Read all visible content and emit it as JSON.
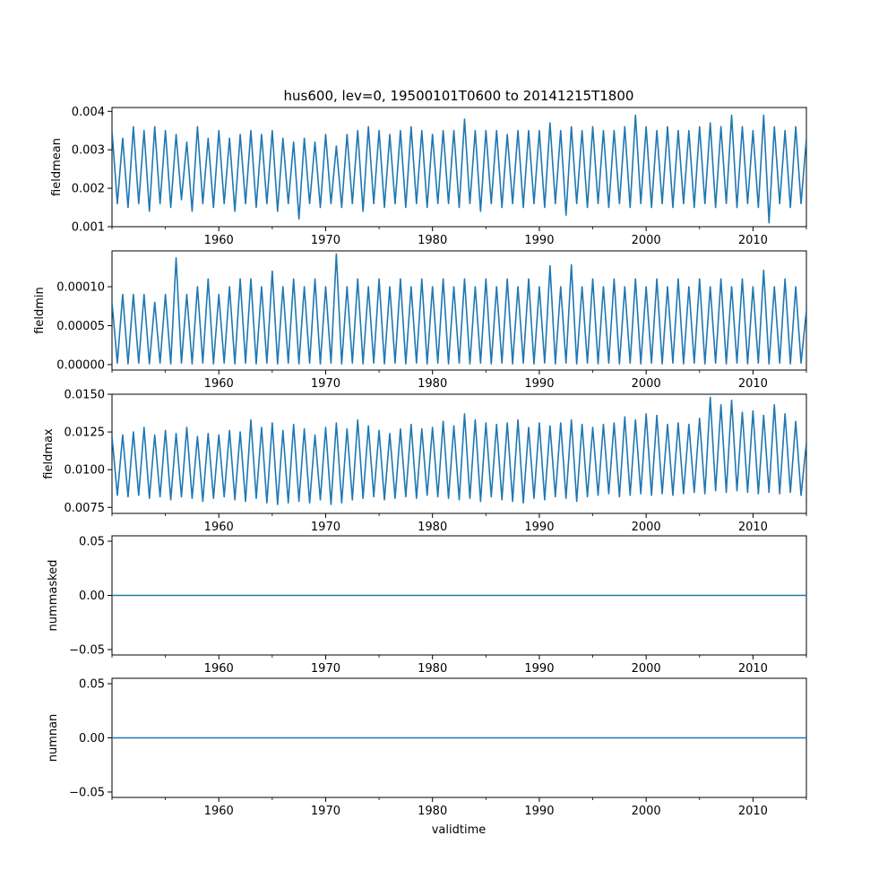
{
  "figure": {
    "title": "hus600, lev=0, 19500101T0600 to 20141215T1800",
    "xlabel": "validtime",
    "line_color": "#1f77b4"
  },
  "chart_data": [
    {
      "type": "line",
      "ylabel": "fieldmean",
      "xlim": [
        1950.0,
        2015.0
      ],
      "ylim": [
        0.001,
        0.0041
      ],
      "yticks": [
        0.001,
        0.002,
        0.003,
        0.004
      ],
      "ytick_labels": [
        "0.001",
        "0.002",
        "0.003",
        "0.004"
      ],
      "xticks": [
        1960,
        1970,
        1980,
        1990,
        2000,
        2010
      ],
      "xtick_labels": [
        "1960",
        "1970",
        "1980",
        "1990",
        "2000",
        "2010"
      ],
      "series": [
        {
          "name": "fieldmean",
          "x": [
            1950.0,
            1950.5,
            1951.0,
            1951.5,
            1952.0,
            1952.5,
            1953.0,
            1953.5,
            1954.0,
            1954.5,
            1955.0,
            1955.5,
            1956.0,
            1956.5,
            1957.0,
            1957.5,
            1958.0,
            1958.5,
            1959.0,
            1959.5,
            1960.0,
            1960.5,
            1961.0,
            1961.5,
            1962.0,
            1962.5,
            1963.0,
            1963.5,
            1964.0,
            1964.5,
            1965.0,
            1965.5,
            1966.0,
            1966.5,
            1967.0,
            1967.5,
            1968.0,
            1968.5,
            1969.0,
            1969.5,
            1970.0,
            1970.5,
            1971.0,
            1971.5,
            1972.0,
            1972.5,
            1973.0,
            1973.5,
            1974.0,
            1974.5,
            1975.0,
            1975.5,
            1976.0,
            1976.5,
            1977.0,
            1977.5,
            1978.0,
            1978.5,
            1979.0,
            1979.5,
            1980.0,
            1980.5,
            1981.0,
            1981.5,
            1982.0,
            1982.5,
            1983.0,
            1983.5,
            1984.0,
            1984.5,
            1985.0,
            1985.5,
            1986.0,
            1986.5,
            1987.0,
            1987.5,
            1988.0,
            1988.5,
            1989.0,
            1989.5,
            1990.0,
            1990.5,
            1991.0,
            1991.5,
            1992.0,
            1992.5,
            1993.0,
            1993.5,
            1994.0,
            1994.5,
            1995.0,
            1995.5,
            1996.0,
            1996.5,
            1997.0,
            1997.5,
            1998.0,
            1998.5,
            1999.0,
            1999.5,
            2000.0,
            2000.5,
            2001.0,
            2001.5,
            2002.0,
            2002.5,
            2003.0,
            2003.5,
            2004.0,
            2004.5,
            2005.0,
            2005.5,
            2006.0,
            2006.5,
            2007.0,
            2007.5,
            2008.0,
            2008.5,
            2009.0,
            2009.5,
            2010.0,
            2010.5,
            2011.0,
            2011.5,
            2012.0,
            2012.5,
            2013.0,
            2013.5,
            2014.0,
            2014.5,
            2015.0
          ],
          "y": [
            0.0035,
            0.0016,
            0.0033,
            0.0015,
            0.0036,
            0.0016,
            0.0035,
            0.0014,
            0.0036,
            0.0016,
            0.0035,
            0.0015,
            0.0034,
            0.0017,
            0.0032,
            0.0014,
            0.0036,
            0.0016,
            0.0033,
            0.0015,
            0.0035,
            0.0016,
            0.0033,
            0.0014,
            0.0034,
            0.0016,
            0.0035,
            0.0015,
            0.0034,
            0.0016,
            0.0035,
            0.0014,
            0.0033,
            0.0016,
            0.0032,
            0.0012,
            0.0033,
            0.0016,
            0.0032,
            0.0015,
            0.0034,
            0.0016,
            0.0031,
            0.0015,
            0.0034,
            0.0016,
            0.0035,
            0.0014,
            0.0036,
            0.0016,
            0.0035,
            0.0015,
            0.0034,
            0.0016,
            0.0035,
            0.0015,
            0.0036,
            0.0016,
            0.0035,
            0.0015,
            0.0034,
            0.0016,
            0.0035,
            0.0016,
            0.0035,
            0.0015,
            0.0038,
            0.0016,
            0.0035,
            0.0014,
            0.0035,
            0.0016,
            0.0035,
            0.0015,
            0.0034,
            0.0016,
            0.0035,
            0.0015,
            0.0035,
            0.0016,
            0.0035,
            0.0015,
            0.0037,
            0.0016,
            0.0035,
            0.0013,
            0.0036,
            0.0016,
            0.0035,
            0.0015,
            0.0036,
            0.0016,
            0.0035,
            0.0015,
            0.0035,
            0.0016,
            0.0036,
            0.0015,
            0.0039,
            0.0016,
            0.0036,
            0.0015,
            0.0035,
            0.0016,
            0.0036,
            0.0015,
            0.0035,
            0.0016,
            0.0035,
            0.0015,
            0.0036,
            0.0016,
            0.0037,
            0.0015,
            0.0036,
            0.0016,
            0.0039,
            0.0015,
            0.0036,
            0.0016,
            0.0035,
            0.0015,
            0.0039,
            0.0011,
            0.0036,
            0.0016,
            0.0035,
            0.0015,
            0.0036,
            0.0016,
            0.0033
          ]
        }
      ]
    },
    {
      "type": "line",
      "ylabel": "fieldmin",
      "xlim": [
        1950.0,
        2015.0
      ],
      "ylim": [
        -7e-06,
        0.000146
      ],
      "yticks": [
        0.0,
        5e-05,
        0.0001
      ],
      "ytick_labels": [
        "0.00000",
        "0.00005",
        "0.00010"
      ],
      "xticks": [
        1960,
        1970,
        1980,
        1990,
        2000,
        2010
      ],
      "xtick_labels": [
        "1960",
        "1970",
        "1980",
        "1990",
        "2000",
        "2010"
      ],
      "series": [
        {
          "name": "fieldmin",
          "x": [
            1950.0,
            1950.5,
            1951.0,
            1951.5,
            1952.0,
            1952.5,
            1953.0,
            1953.5,
            1954.0,
            1954.5,
            1955.0,
            1955.5,
            1956.0,
            1956.5,
            1957.0,
            1957.5,
            1958.0,
            1958.5,
            1959.0,
            1959.5,
            1960.0,
            1960.5,
            1961.0,
            1961.5,
            1962.0,
            1962.5,
            1963.0,
            1963.5,
            1964.0,
            1964.5,
            1965.0,
            1965.5,
            1966.0,
            1966.5,
            1967.0,
            1967.5,
            1968.0,
            1968.5,
            1969.0,
            1969.5,
            1970.0,
            1970.5,
            1971.0,
            1971.5,
            1972.0,
            1972.5,
            1973.0,
            1973.5,
            1974.0,
            1974.5,
            1975.0,
            1975.5,
            1976.0,
            1976.5,
            1977.0,
            1977.5,
            1978.0,
            1978.5,
            1979.0,
            1979.5,
            1980.0,
            1980.5,
            1981.0,
            1981.5,
            1982.0,
            1982.5,
            1983.0,
            1983.5,
            1984.0,
            1984.5,
            1985.0,
            1985.5,
            1986.0,
            1986.5,
            1987.0,
            1987.5,
            1988.0,
            1988.5,
            1989.0,
            1989.5,
            1990.0,
            1990.5,
            1991.0,
            1991.5,
            1992.0,
            1992.5,
            1993.0,
            1993.5,
            1994.0,
            1994.5,
            1995.0,
            1995.5,
            1996.0,
            1996.5,
            1997.0,
            1997.5,
            1998.0,
            1998.5,
            1999.0,
            1999.5,
            2000.0,
            2000.5,
            2001.0,
            2001.5,
            2002.0,
            2002.5,
            2003.0,
            2003.5,
            2004.0,
            2004.5,
            2005.0,
            2005.5,
            2006.0,
            2006.5,
            2007.0,
            2007.5,
            2008.0,
            2008.5,
            2009.0,
            2009.5,
            2010.0,
            2010.5,
            2011.0,
            2011.5,
            2012.0,
            2012.5,
            2013.0,
            2013.5,
            2014.0,
            2014.5,
            2015.0
          ],
          "y": [
            8e-05,
            2e-06,
            9e-05,
            1e-06,
            9e-05,
            2e-06,
            9e-05,
            1e-06,
            8e-05,
            2e-06,
            9e-05,
            1e-06,
            0.000137,
            2e-06,
            9e-05,
            1e-06,
            0.0001,
            2e-06,
            0.00011,
            1e-06,
            9e-05,
            2e-06,
            0.0001,
            1e-06,
            0.00011,
            2e-06,
            0.00011,
            1e-06,
            0.0001,
            2e-06,
            0.00012,
            1e-06,
            0.0001,
            2e-06,
            0.00011,
            1e-06,
            0.0001,
            2e-06,
            0.00011,
            1e-06,
            0.0001,
            2e-06,
            0.000142,
            1e-06,
            0.0001,
            2e-06,
            0.00011,
            1e-06,
            0.0001,
            2e-06,
            0.00011,
            1e-06,
            0.0001,
            2e-06,
            0.00011,
            1e-06,
            0.0001,
            2e-06,
            0.00011,
            1e-06,
            0.0001,
            2e-06,
            0.00011,
            1e-06,
            0.0001,
            2e-06,
            0.00011,
            1e-06,
            0.0001,
            2e-06,
            0.00011,
            1e-06,
            0.0001,
            2e-06,
            0.00011,
            1e-06,
            0.0001,
            2e-06,
            0.00011,
            1e-06,
            0.0001,
            2e-06,
            0.000127,
            1e-06,
            0.0001,
            2e-06,
            0.000128,
            1e-06,
            0.0001,
            2e-06,
            0.00011,
            1e-06,
            0.0001,
            2e-06,
            0.00011,
            1e-06,
            0.0001,
            2e-06,
            0.00011,
            1e-06,
            0.0001,
            2e-06,
            0.00011,
            1e-06,
            0.0001,
            2e-06,
            0.00011,
            1e-06,
            0.0001,
            2e-06,
            0.00011,
            1e-06,
            0.0001,
            2e-06,
            0.00011,
            1e-06,
            0.0001,
            2e-06,
            0.00011,
            1e-06,
            0.0001,
            2e-06,
            0.000121,
            1e-06,
            0.0001,
            2e-06,
            0.00011,
            1e-06,
            0.0001,
            2e-06,
            7e-05
          ]
        }
      ]
    },
    {
      "type": "line",
      "ylabel": "fieldmax",
      "xlim": [
        1950.0,
        2015.0
      ],
      "ylim": [
        0.0071,
        0.015
      ],
      "yticks": [
        0.0075,
        0.01,
        0.0125,
        0.015
      ],
      "ytick_labels": [
        "0.0075",
        "0.0100",
        "0.0125",
        "0.0150"
      ],
      "xticks": [
        1960,
        1970,
        1980,
        1990,
        2000,
        2010
      ],
      "xtick_labels": [
        "1960",
        "1970",
        "1980",
        "1990",
        "2000",
        "2010"
      ],
      "series": [
        {
          "name": "fieldmax",
          "x": [
            1950.0,
            1950.5,
            1951.0,
            1951.5,
            1952.0,
            1952.5,
            1953.0,
            1953.5,
            1954.0,
            1954.5,
            1955.0,
            1955.5,
            1956.0,
            1956.5,
            1957.0,
            1957.5,
            1958.0,
            1958.5,
            1959.0,
            1959.5,
            1960.0,
            1960.5,
            1961.0,
            1961.5,
            1962.0,
            1962.5,
            1963.0,
            1963.5,
            1964.0,
            1964.5,
            1965.0,
            1965.5,
            1966.0,
            1966.5,
            1967.0,
            1967.5,
            1968.0,
            1968.5,
            1969.0,
            1969.5,
            1970.0,
            1970.5,
            1971.0,
            1971.5,
            1972.0,
            1972.5,
            1973.0,
            1973.5,
            1974.0,
            1974.5,
            1975.0,
            1975.5,
            1976.0,
            1976.5,
            1977.0,
            1977.5,
            1978.0,
            1978.5,
            1979.0,
            1979.5,
            1980.0,
            1980.5,
            1981.0,
            1981.5,
            1982.0,
            1982.5,
            1983.0,
            1983.5,
            1984.0,
            1984.5,
            1985.0,
            1985.5,
            1986.0,
            1986.5,
            1987.0,
            1987.5,
            1988.0,
            1988.5,
            1989.0,
            1989.5,
            1990.0,
            1990.5,
            1991.0,
            1991.5,
            1992.0,
            1992.5,
            1993.0,
            1993.5,
            1994.0,
            1994.5,
            1995.0,
            1995.5,
            1996.0,
            1996.5,
            1997.0,
            1997.5,
            1998.0,
            1998.5,
            1999.0,
            1999.5,
            2000.0,
            2000.5,
            2001.0,
            2001.5,
            2002.0,
            2002.5,
            2003.0,
            2003.5,
            2004.0,
            2004.5,
            2005.0,
            2005.5,
            2006.0,
            2006.5,
            2007.0,
            2007.5,
            2008.0,
            2008.5,
            2009.0,
            2009.5,
            2010.0,
            2010.5,
            2011.0,
            2011.5,
            2012.0,
            2012.5,
            2013.0,
            2013.5,
            2014.0,
            2014.5,
            2015.0
          ],
          "y": [
            0.0122,
            0.0083,
            0.0123,
            0.0082,
            0.0125,
            0.0083,
            0.0128,
            0.0081,
            0.0123,
            0.0082,
            0.0126,
            0.008,
            0.0124,
            0.0082,
            0.0128,
            0.0081,
            0.0122,
            0.0079,
            0.0124,
            0.0081,
            0.0123,
            0.0082,
            0.0126,
            0.008,
            0.0125,
            0.0079,
            0.0133,
            0.0081,
            0.0128,
            0.0078,
            0.0131,
            0.0077,
            0.0126,
            0.0078,
            0.013,
            0.0079,
            0.0127,
            0.0078,
            0.0123,
            0.008,
            0.0128,
            0.0077,
            0.0131,
            0.0078,
            0.0127,
            0.008,
            0.0133,
            0.0081,
            0.0129,
            0.0082,
            0.0126,
            0.008,
            0.0124,
            0.0081,
            0.0127,
            0.0082,
            0.013,
            0.0081,
            0.0127,
            0.0083,
            0.0128,
            0.0082,
            0.0132,
            0.0081,
            0.0129,
            0.008,
            0.0137,
            0.0081,
            0.0133,
            0.0079,
            0.0131,
            0.0082,
            0.013,
            0.008,
            0.0131,
            0.0079,
            0.0133,
            0.0078,
            0.0128,
            0.0081,
            0.0131,
            0.008,
            0.0129,
            0.0082,
            0.0131,
            0.0081,
            0.0133,
            0.0079,
            0.013,
            0.0082,
            0.0128,
            0.0083,
            0.013,
            0.0084,
            0.0131,
            0.0082,
            0.0135,
            0.0083,
            0.0133,
            0.0084,
            0.0137,
            0.0083,
            0.0136,
            0.0084,
            0.013,
            0.0083,
            0.0131,
            0.0084,
            0.013,
            0.0085,
            0.0134,
            0.0084,
            0.0148,
            0.0086,
            0.0143,
            0.0085,
            0.0146,
            0.0086,
            0.0138,
            0.0085,
            0.0139,
            0.0084,
            0.0136,
            0.0085,
            0.0143,
            0.0084,
            0.0137,
            0.0085,
            0.0132,
            0.0083,
            0.0118
          ]
        }
      ]
    },
    {
      "type": "line",
      "ylabel": "nummasked",
      "xlim": [
        1950.0,
        2015.0
      ],
      "ylim": [
        -0.055,
        0.055
      ],
      "yticks": [
        -0.05,
        0.0,
        0.05
      ],
      "ytick_labels": [
        "−0.05",
        "0.00",
        "0.05"
      ],
      "xticks": [
        1960,
        1970,
        1980,
        1990,
        2000,
        2010
      ],
      "xtick_labels": [
        "1960",
        "1970",
        "1980",
        "1990",
        "2000",
        "2010"
      ],
      "series": [
        {
          "name": "nummasked",
          "x": [
            1950.0,
            2015.0
          ],
          "y": [
            0,
            0
          ]
        }
      ]
    },
    {
      "type": "line",
      "ylabel": "numnan",
      "xlim": [
        1950.0,
        2015.0
      ],
      "ylim": [
        -0.055,
        0.055
      ],
      "yticks": [
        -0.05,
        0.0,
        0.05
      ],
      "ytick_labels": [
        "−0.05",
        "0.00",
        "0.05"
      ],
      "xticks": [
        1960,
        1970,
        1980,
        1990,
        2000,
        2010
      ],
      "xtick_labels": [
        "1960",
        "1970",
        "1980",
        "1990",
        "2000",
        "2010"
      ],
      "series": [
        {
          "name": "numnan",
          "x": [
            1950.0,
            2015.0
          ],
          "y": [
            0,
            0
          ]
        }
      ]
    }
  ]
}
